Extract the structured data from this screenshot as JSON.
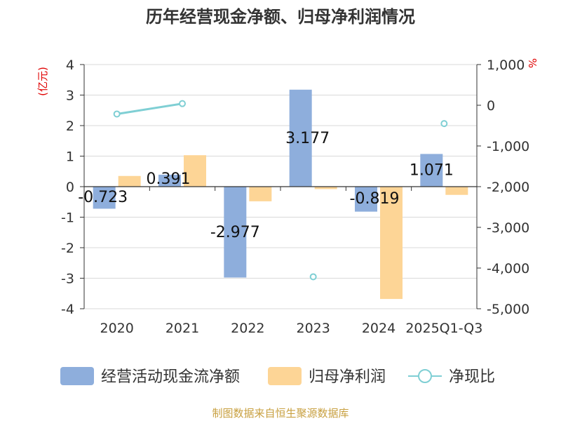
{
  "title": "历年经营现金净额、归母净利润情况",
  "source": "制图数据来自恒生聚源数据库",
  "colors": {
    "cash_flow": "#8eaedc",
    "net_profit": "#fdd596",
    "ratio": "#7fcfd4",
    "unit": "#e00000",
    "source": "#c8a040"
  },
  "chart_data": {
    "type": "bar",
    "title": "历年经营现金净额、归母净利润情况",
    "categories": [
      "2020",
      "2021",
      "2022",
      "2023",
      "2024",
      "2025Q1-Q3"
    ],
    "y_left": {
      "unit_label": "(亿元)",
      "range": [
        -4,
        4
      ],
      "ticks": [
        "4",
        "3",
        "2",
        "1",
        "0",
        "-1",
        "-2",
        "-3",
        "-4"
      ]
    },
    "y_right": {
      "unit_label": "%",
      "range": [
        -5000,
        1000
      ],
      "ticks": [
        "1,000",
        "0",
        "-1,000",
        "-2,000",
        "-3,000",
        "-4,000",
        "-5,000"
      ]
    },
    "series": [
      {
        "name": "经营活动现金流净额",
        "type": "bar",
        "axis": "left",
        "values": [
          -0.723,
          0.391,
          -2.977,
          3.177,
          -0.819,
          1.071
        ],
        "labels": [
          "-0.723",
          "0.391",
          "-2.977",
          "3.177",
          "-0.819",
          "1.071"
        ]
      },
      {
        "name": "归母净利润",
        "type": "bar",
        "axis": "left",
        "values": [
          0.35,
          1.03,
          -0.48,
          -0.08,
          -3.68,
          -0.27
        ]
      },
      {
        "name": "净现比",
        "type": "line",
        "axis": "right",
        "values": [
          -215,
          40,
          null,
          -4215,
          null,
          -450
        ]
      }
    ],
    "grid": true,
    "legend": "bottom"
  }
}
